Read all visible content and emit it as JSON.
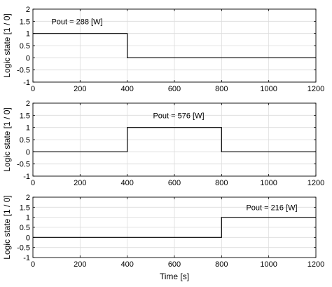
{
  "chart_data": [
    {
      "type": "line",
      "ylabel": "Logic state [1 / 0]",
      "xlabel": "",
      "xlim": [
        0,
        1200
      ],
      "ylim": [
        -1,
        2
      ],
      "xticks": [
        0,
        200,
        400,
        600,
        800,
        1000,
        1200
      ],
      "yticks": [
        -1,
        -0.5,
        0,
        0.5,
        1,
        1.5,
        2
      ],
      "grid": true,
      "series": [
        {
          "x": [
            0,
            400,
            400,
            1200
          ],
          "y": [
            1,
            1,
            0,
            0
          ]
        }
      ],
      "annotation": {
        "text": "Pout = 288 [W]"
      }
    },
    {
      "type": "line",
      "ylabel": "Logic state [1 / 0]",
      "xlabel": "",
      "xlim": [
        0,
        1200
      ],
      "ylim": [
        -1,
        2
      ],
      "xticks": [
        0,
        200,
        400,
        600,
        800,
        1000,
        1200
      ],
      "yticks": [
        -1,
        -0.5,
        0,
        0.5,
        1,
        1.5,
        2
      ],
      "grid": true,
      "series": [
        {
          "x": [
            0,
            400,
            400,
            800,
            800,
            1200
          ],
          "y": [
            0,
            0,
            1,
            1,
            0,
            0
          ]
        }
      ],
      "annotation": {
        "text": "Pout = 576 [W]"
      }
    },
    {
      "type": "line",
      "ylabel": "Logic state [1 / 0]",
      "xlabel": "Time [s]",
      "xlim": [
        0,
        1200
      ],
      "ylim": [
        -1,
        2
      ],
      "xticks": [
        0,
        200,
        400,
        600,
        800,
        1000,
        1200
      ],
      "yticks": [
        -1,
        -0.5,
        0,
        0.5,
        1,
        1.5,
        2
      ],
      "grid": true,
      "series": [
        {
          "x": [
            0,
            800,
            800,
            1200
          ],
          "y": [
            0,
            0,
            1,
            1
          ]
        }
      ],
      "annotation": {
        "text": "Pout = 216 [W]"
      }
    }
  ]
}
